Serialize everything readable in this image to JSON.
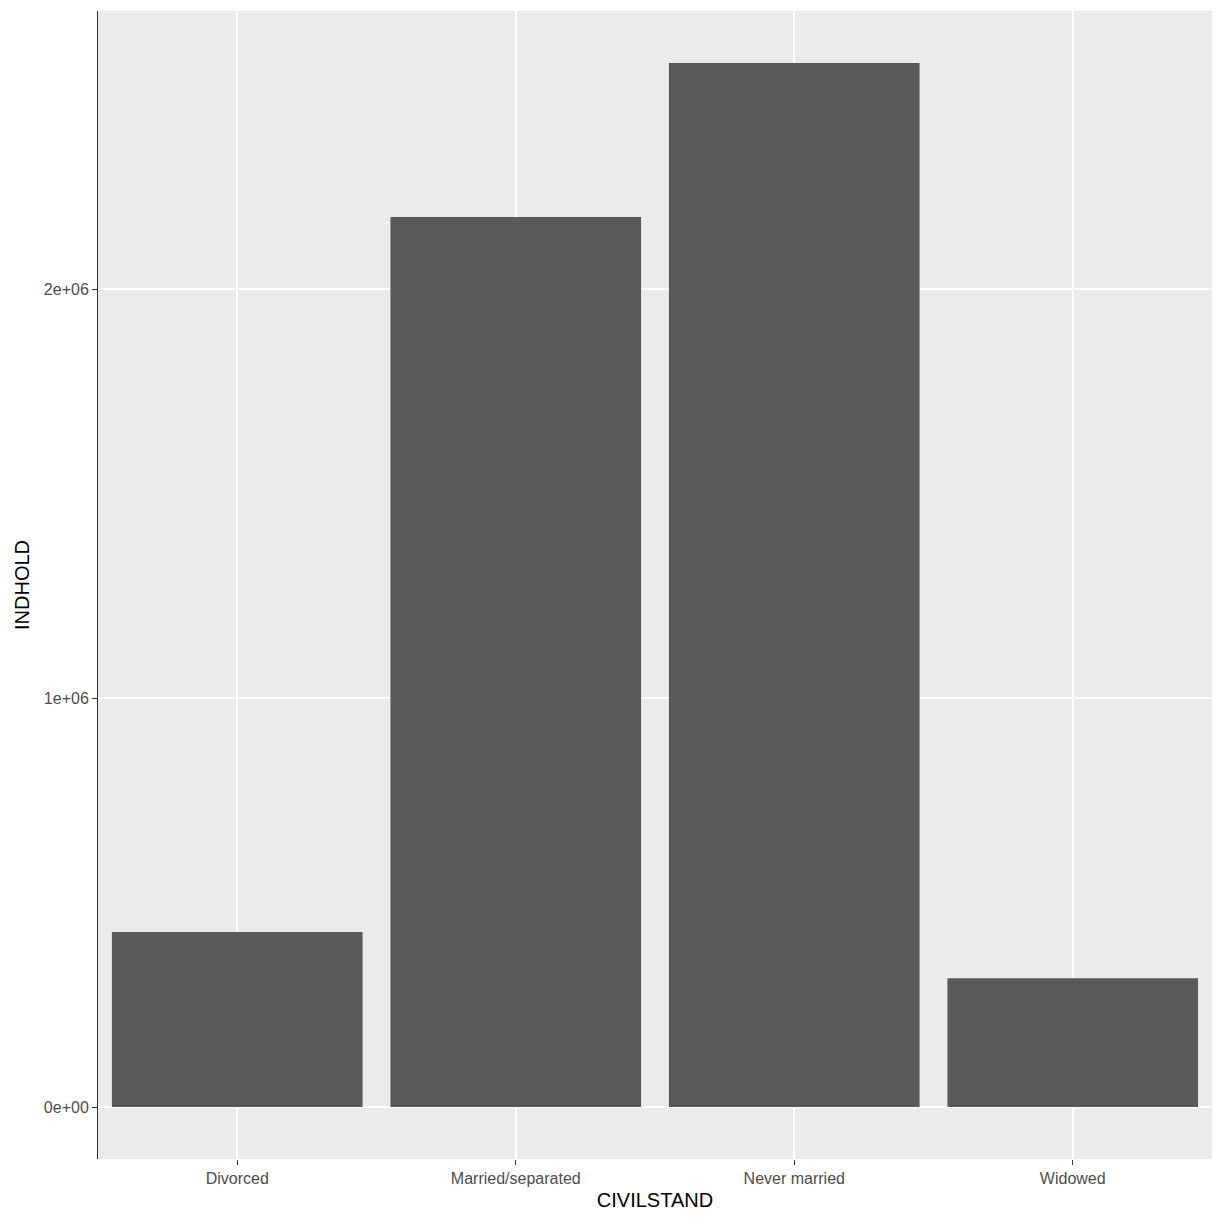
{
  "chart_data": {
    "type": "bar",
    "x_label": "CIVILSTAND",
    "y_label": "INDHOLD",
    "categories": [
      "Divorced",
      "Married/separated",
      "Never married",
      "Widowed"
    ],
    "values": [
      428000,
      2176000,
      2553000,
      315000
    ],
    "color": "#595959",
    "ylim": [
      -127000,
      2680000
    ],
    "yticks": [
      {
        "value": 0,
        "label": "0e+00"
      },
      {
        "value": 1000000,
        "label": "1e+06"
      },
      {
        "value": 2000000,
        "label": "2e+06"
      }
    ],
    "grid": true
  }
}
